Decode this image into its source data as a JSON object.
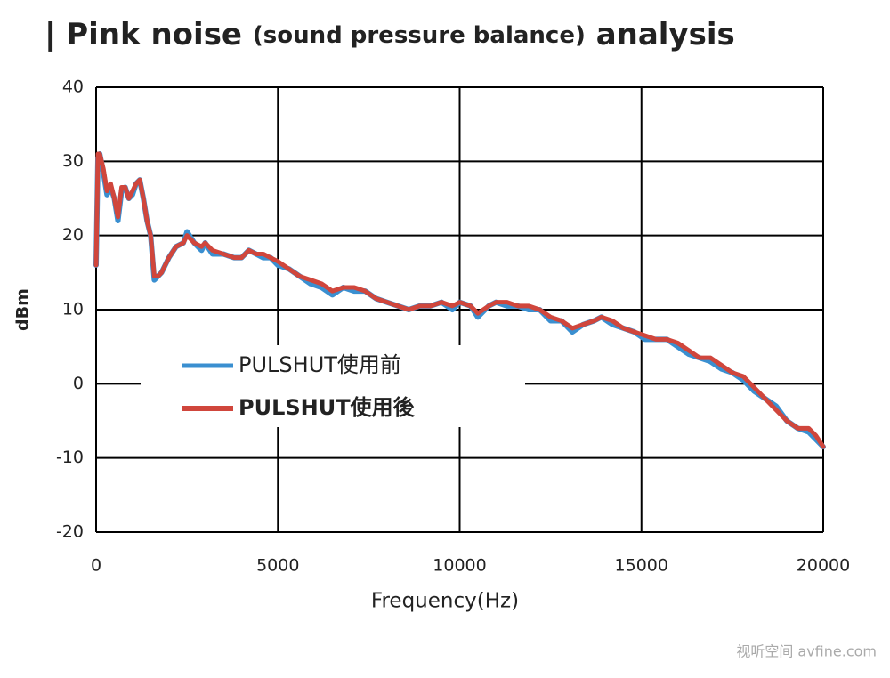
{
  "chart_data": {
    "type": "line",
    "title": [
      "| Pink noise",
      "(sound pressure balance)",
      "analysis"
    ],
    "x_label": "Frequency(Hz)",
    "y_label": "dBm",
    "watermark": "视听空间 avfine.com",
    "xlim": [
      0,
      20000
    ],
    "xticks": [
      0,
      5000,
      10000,
      15000,
      20000
    ],
    "ylim": [
      -20,
      40
    ],
    "yticks": [
      -20,
      -10,
      0,
      10,
      20,
      30,
      40
    ],
    "grid": true,
    "legend": "center-left",
    "x": [
      0,
      50,
      100,
      200,
      300,
      400,
      500,
      600,
      700,
      800,
      900,
      1000,
      1100,
      1200,
      1300,
      1400,
      1500,
      1600,
      1700,
      1800,
      2000,
      2200,
      2400,
      2500,
      2700,
      2900,
      3000,
      3200,
      3500,
      3800,
      4000,
      4200,
      4400,
      4600,
      4800,
      5000,
      5300,
      5600,
      5900,
      6200,
      6500,
      6800,
      7100,
      7400,
      7700,
      8000,
      8300,
      8600,
      8900,
      9200,
      9500,
      9800,
      10000,
      10300,
      10500,
      10800,
      11000,
      11300,
      11600,
      11900,
      12200,
      12500,
      12800,
      13100,
      13400,
      13700,
      13900,
      14200,
      14500,
      14800,
      15100,
      15400,
      15700,
      16000,
      16300,
      16600,
      16900,
      17200,
      17500,
      17800,
      18100,
      18400,
      18700,
      19000,
      19300,
      19600,
      19800,
      20000
    ],
    "series": [
      {
        "name": "PULSHUT使用前",
        "color": "#3a8fd0",
        "values": [
          16,
          30.5,
          31,
          28.5,
          25.5,
          26.5,
          25,
          22,
          26,
          26.5,
          25,
          25.5,
          27,
          27.5,
          25,
          22,
          20,
          14,
          14.5,
          15,
          17,
          18.5,
          19,
          20.5,
          19,
          18,
          19,
          17.5,
          17.5,
          17,
          17,
          18,
          17.5,
          17,
          17,
          16,
          15.5,
          14.5,
          13.5,
          13,
          12,
          13,
          12.5,
          12.5,
          11.5,
          11,
          10.5,
          10,
          10.5,
          10.5,
          11,
          10,
          11,
          10.5,
          9,
          10.5,
          11,
          10.5,
          10.5,
          10,
          10,
          8.5,
          8.5,
          7,
          8,
          8.5,
          9,
          8,
          7.5,
          7,
          6,
          6,
          6,
          5,
          4,
          3.5,
          3,
          2,
          1.5,
          0.5,
          -1,
          -2,
          -3,
          -5,
          -6,
          -6.5,
          -7.5,
          -8.5
        ]
      },
      {
        "name": "PULSHUT使用後",
        "color": "#d0463c",
        "values": [
          16,
          31,
          31,
          29,
          26,
          27,
          25,
          22.5,
          26.5,
          26.5,
          25,
          26,
          27,
          27.5,
          25,
          22,
          20,
          14.5,
          14.5,
          15,
          17,
          18.5,
          19,
          20,
          19,
          18.5,
          19,
          18,
          17.5,
          17,
          17,
          18,
          17.5,
          17.5,
          17,
          16.5,
          15.5,
          14.5,
          14,
          13.5,
          12.5,
          13,
          13,
          12.5,
          11.5,
          11,
          10.5,
          10,
          10.5,
          10.5,
          11,
          10.5,
          11,
          10.5,
          9.5,
          10.5,
          11,
          11,
          10.5,
          10.5,
          10,
          9,
          8.5,
          7.5,
          8,
          8.5,
          9,
          8.5,
          7.5,
          7,
          6.5,
          6,
          6,
          5.5,
          4.5,
          3.5,
          3.5,
          2.5,
          1.5,
          1,
          -0.5,
          -2,
          -3.5,
          -5,
          -6,
          -6,
          -7,
          -8.5
        ]
      }
    ]
  }
}
